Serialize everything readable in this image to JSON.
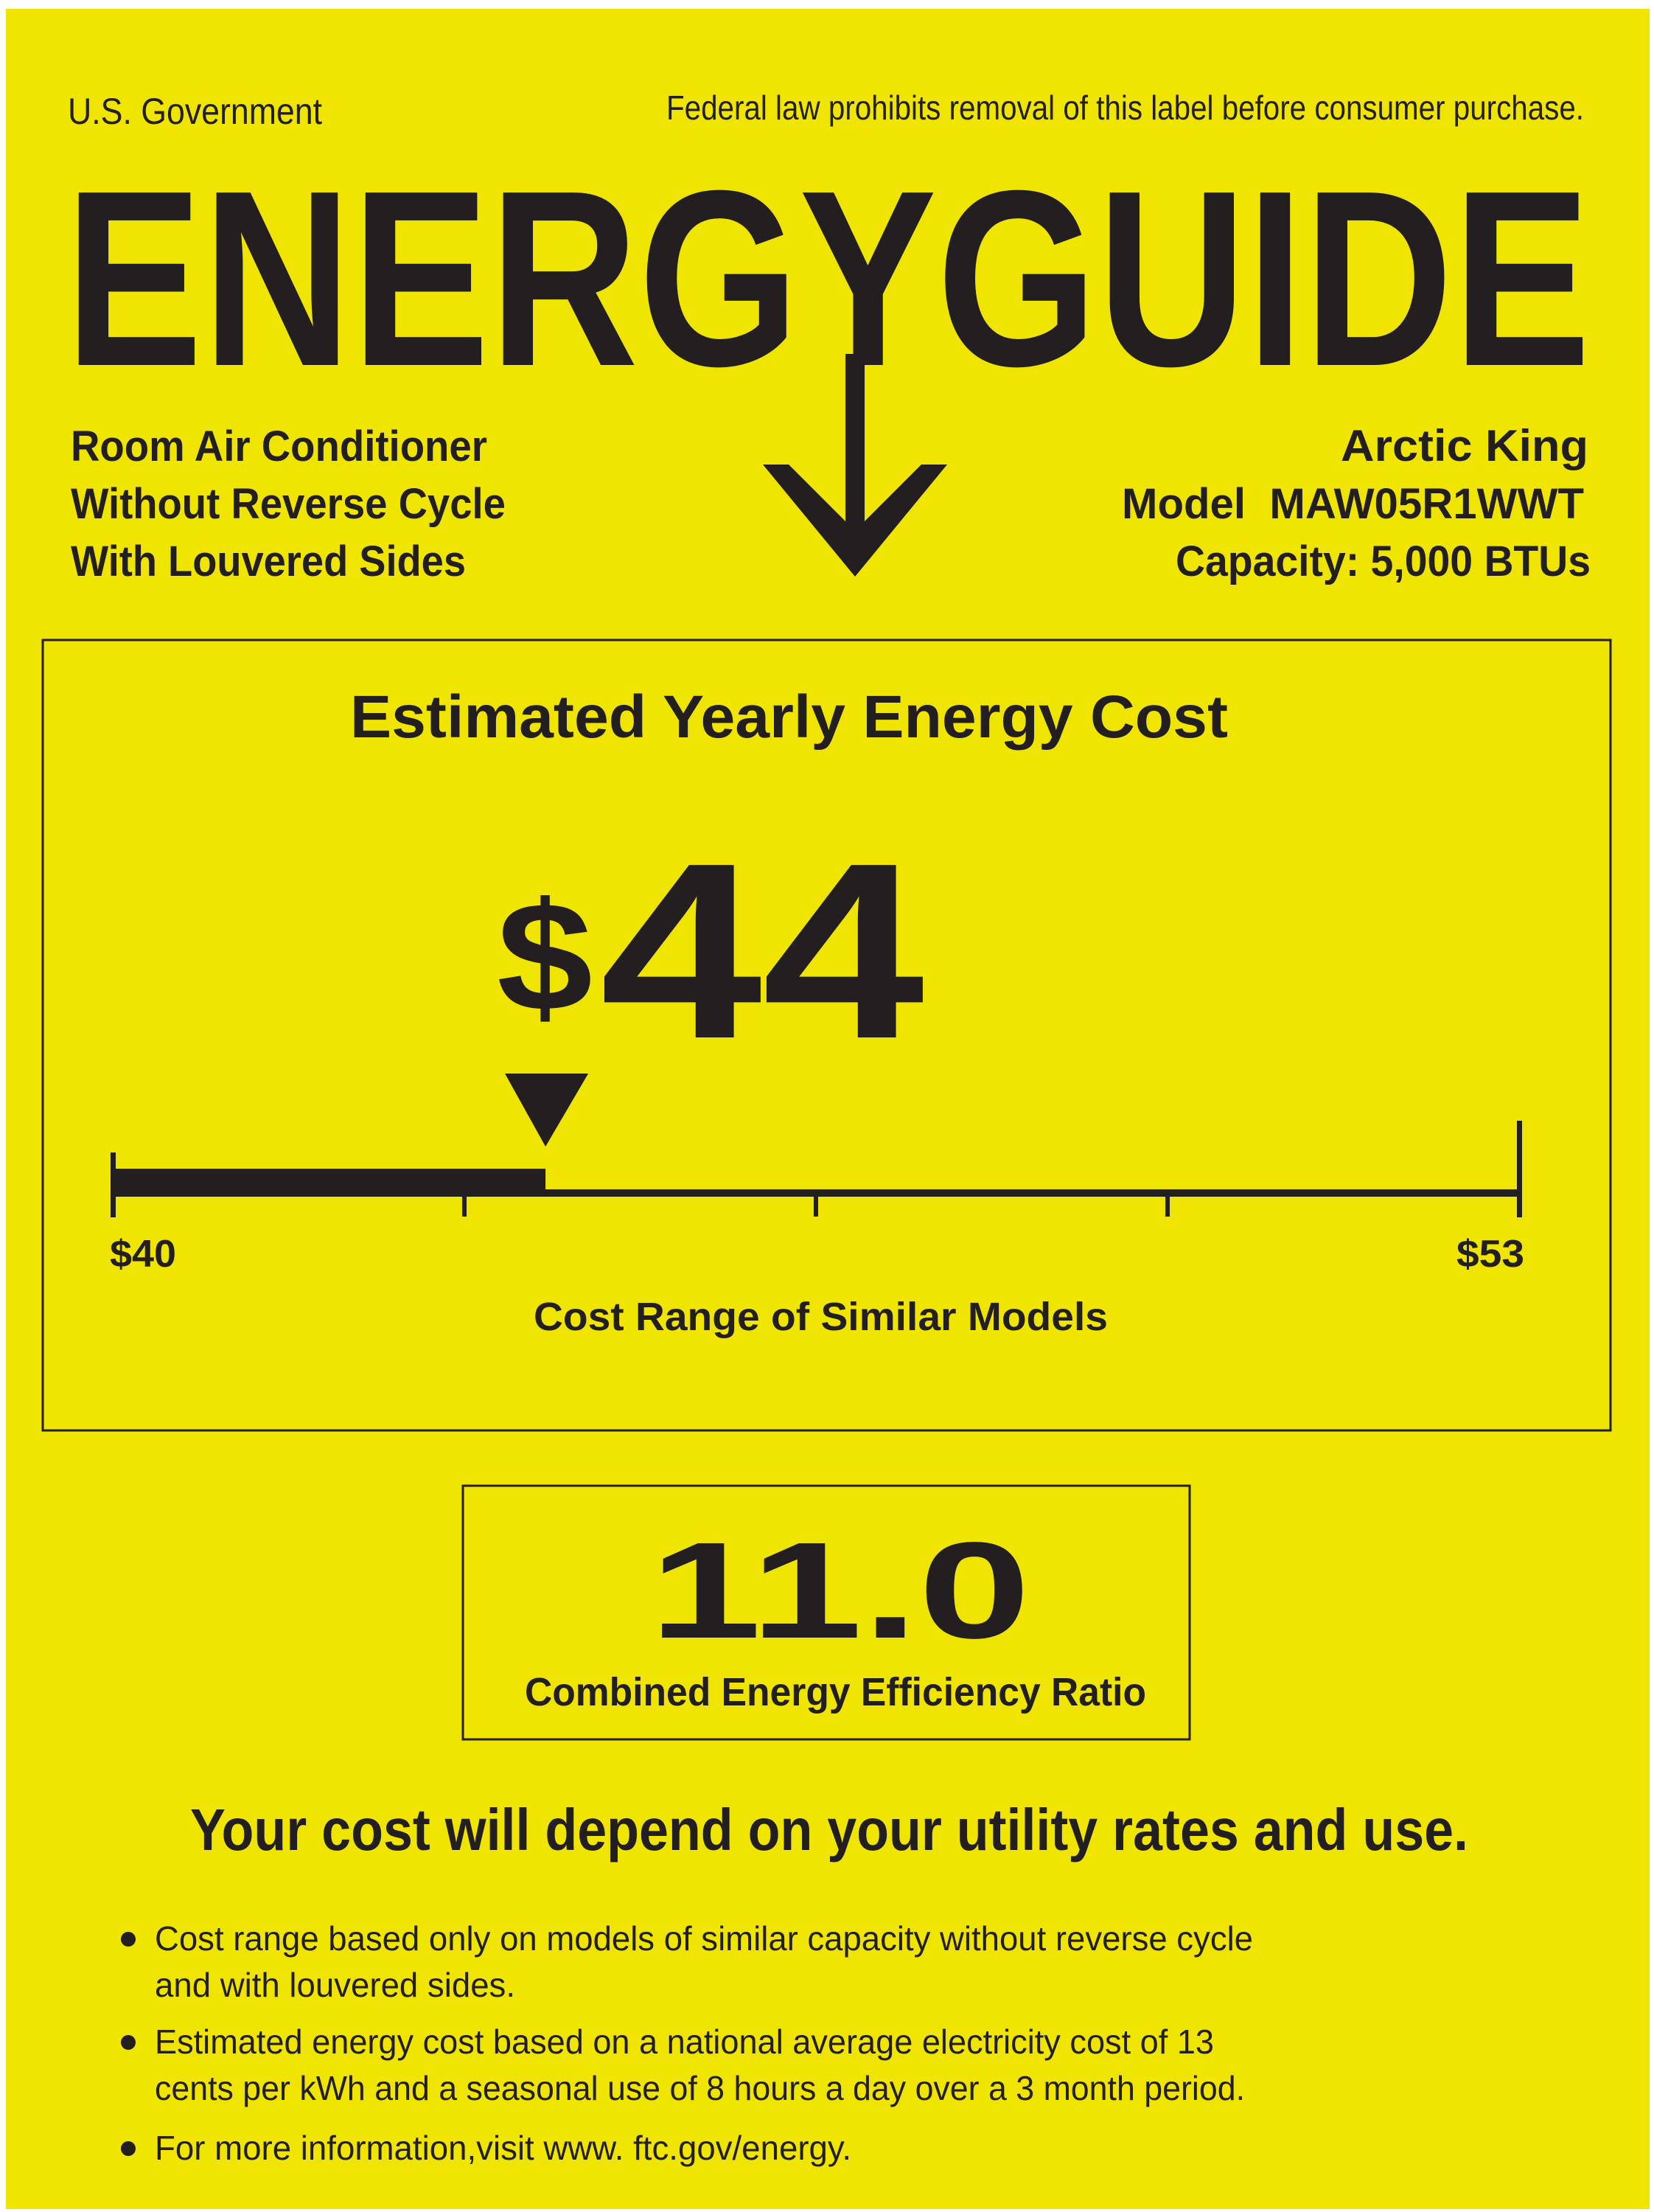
{
  "header": {
    "issuer": "U.S. Government",
    "notice": "Federal law prohibits removal of this label before consumer purchase.",
    "title": "ENERGYGUIDE"
  },
  "product": {
    "lines": [
      "Room Air Conditioner",
      "Without Reverse Cycle",
      "With Louvered Sides"
    ]
  },
  "manufacturer": {
    "brand": "Arctic King",
    "model": "Model  MAW05R1WWT",
    "capacity": "Capacity: 5,000 BTUs"
  },
  "cost": {
    "heading": "Estimated Yearly Energy Cost",
    "currency": "$",
    "amount": "44",
    "range_min_label": "$40",
    "range_max_label": "$53",
    "range_caption": "Cost Range of Similar Models",
    "range": {
      "min": 40,
      "max": 53,
      "value": 44,
      "ticks": 5
    }
  },
  "efficiency": {
    "value": "11.0",
    "label": "Combined Energy Efficiency Ratio"
  },
  "disclaimer": "Your cost will depend on your utility rates and use.",
  "bullets": [
    [
      "Cost range based only on models of similar capacity without reverse cycle",
      "and with louvered sides."
    ],
    [
      "Estimated energy cost based on a national average electricity cost of 13",
      "cents per kWh and a seasonal use of 8 hours a day over a 3 month period."
    ],
    [
      "For more information,visit www. ftc.gov/energy."
    ]
  ],
  "colors": {
    "label_background": "#f0e500",
    "ink": "#231f20"
  }
}
